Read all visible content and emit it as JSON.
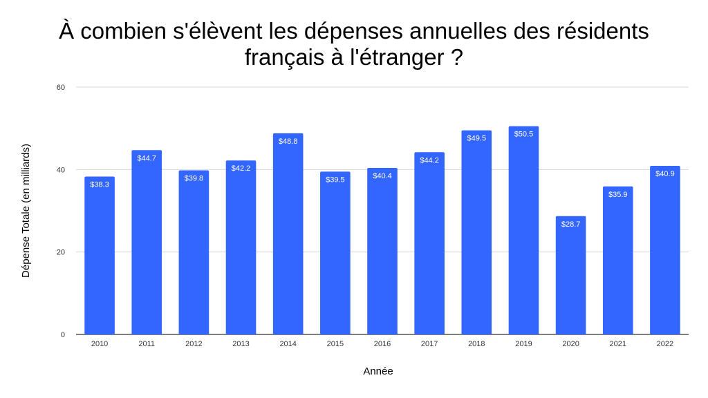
{
  "chart_data": {
    "type": "bar",
    "title_lines": [
      "À combien s'élèvent les dépenses annuelles des résidents",
      "français à l'étranger ?"
    ],
    "xlabel": "Année",
    "ylabel": "Dépense Totale (en milliards)",
    "categories": [
      "2010",
      "2011",
      "2012",
      "2013",
      "2014",
      "2015",
      "2016",
      "2017",
      "2018",
      "2019",
      "2020",
      "2021",
      "2022"
    ],
    "values": [
      38.3,
      44.7,
      39.8,
      42.2,
      48.8,
      39.5,
      40.4,
      44.2,
      49.5,
      50.5,
      28.7,
      35.9,
      40.9
    ],
    "data_labels": [
      "$38.3",
      "$44.7",
      "$39.8",
      "$42.2",
      "$48.8",
      "$39.5",
      "$40.4",
      "$44.2",
      "$49.5",
      "$50.5",
      "$28.7",
      "$35.9",
      "$40.9"
    ],
    "ylim": [
      0,
      60
    ],
    "yticks": [
      0,
      20,
      40,
      60
    ],
    "grid": true,
    "legend": "none",
    "bar_color": "#3366ff",
    "grid_color": "#d9d9d9",
    "axis_color": "#333333"
  }
}
